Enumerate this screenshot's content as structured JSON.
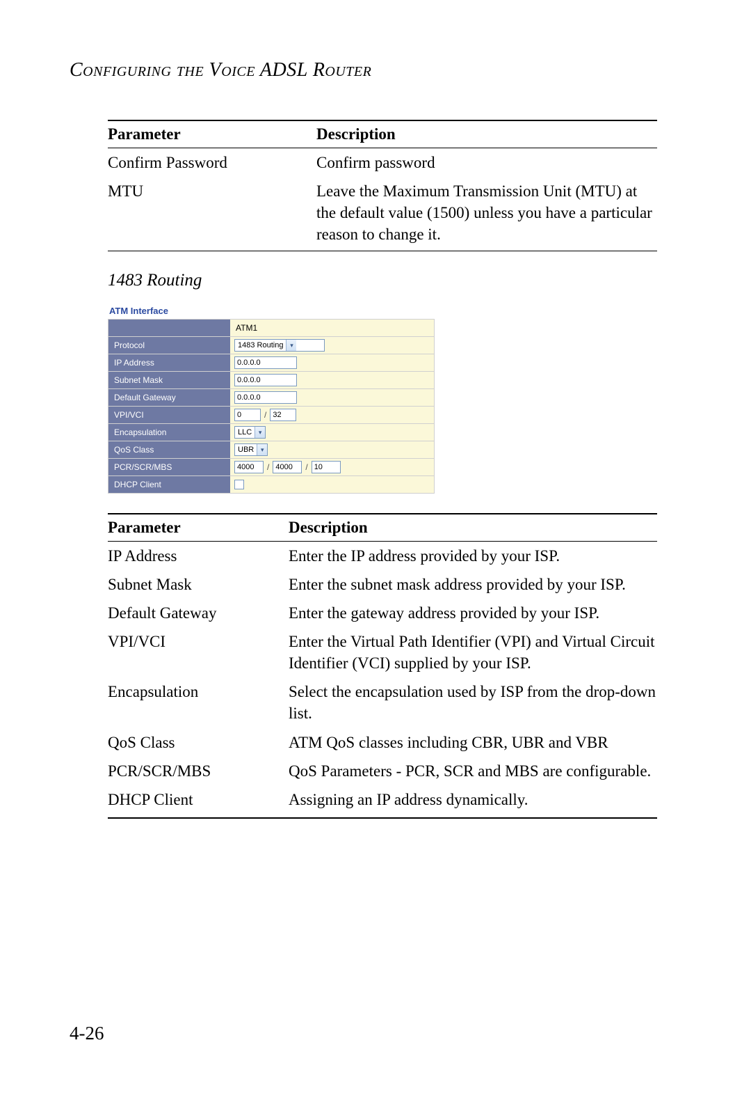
{
  "chapter_title": "Configuring the Voice ADSL Router",
  "table1": {
    "headers": {
      "param": "Parameter",
      "desc": "Description"
    },
    "rows": [
      {
        "param": "Confirm Password",
        "desc": "Confirm password"
      },
      {
        "param": "MTU",
        "desc": "Leave the Maximum Transmission Unit (MTU) at the default value (1500) unless you have a particular reason to change it."
      }
    ]
  },
  "section_heading": "1483 Routing",
  "atm": {
    "title": "ATM Interface",
    "interface_name": "ATM1",
    "labels": {
      "protocol": "Protocol",
      "ip": "IP Address",
      "subnet": "Subnet Mask",
      "gateway": "Default Gateway",
      "vpivci": "VPI/VCI",
      "encap": "Encapsulation",
      "qos": "QoS Class",
      "pcr": "PCR/SCR/MBS",
      "dhcp": "DHCP Client"
    },
    "values": {
      "protocol": "1483 Routing",
      "ip": "0.0.0.0",
      "subnet": "0.0.0.0",
      "gateway": "0.0.0.0",
      "vpi": "0",
      "vci": "32",
      "encap": "LLC",
      "qos": "UBR",
      "pcr": "4000",
      "scr": "4000",
      "mbs": "10",
      "dhcp_checked": false
    },
    "colors": {
      "label_bg": "#6e79a3",
      "label_text": "#ffffff",
      "value_bg": "#fbf8d9",
      "title_color": "#2b4aa0",
      "input_border": "#7a9ac0"
    }
  },
  "table2": {
    "headers": {
      "param": "Parameter",
      "desc": "Description"
    },
    "rows": [
      {
        "param": "IP Address",
        "desc": "Enter the IP address provided by your ISP."
      },
      {
        "param": "Subnet Mask",
        "desc": "Enter the subnet mask address provided by your ISP."
      },
      {
        "param": "Default Gateway",
        "desc": "Enter the gateway address provided by your ISP."
      },
      {
        "param": "VPI/VCI",
        "desc": "Enter the Virtual Path Identifier (VPI) and Virtual Circuit Identifier (VCI) supplied by your ISP."
      },
      {
        "param": "Encapsulation",
        "desc": "Select the encapsulation used by ISP from the drop-down list."
      },
      {
        "param": "QoS Class",
        "desc": "ATM QoS classes including CBR, UBR and VBR"
      },
      {
        "param": "PCR/SCR/MBS",
        "desc": "QoS Parameters - PCR, SCR and MBS are configurable."
      },
      {
        "param": "DHCP Client",
        "desc": "Assigning an IP address dynamically."
      }
    ]
  },
  "page_number": "4-26"
}
